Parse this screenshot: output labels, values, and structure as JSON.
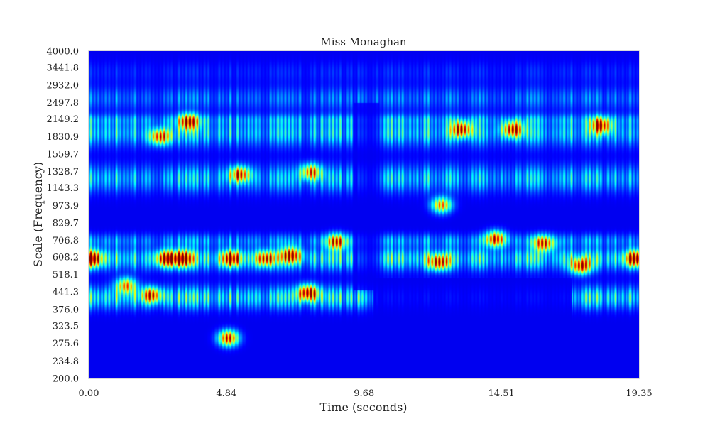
{
  "chart_data": {
    "type": "heatmap",
    "title": "Miss Monaghan",
    "xlabel": "Time (seconds)",
    "ylabel": "Scale (Frequency)",
    "xlim": [
      0.0,
      19.35
    ],
    "ylim": [
      200.0,
      4000.0
    ],
    "yscale": "log",
    "colormap": "jet",
    "grid": false,
    "x_ticks": [
      "0.00",
      "4.84",
      "9.68",
      "14.51",
      "19.35"
    ],
    "x_tick_values": [
      0.0,
      4.84,
      9.68,
      14.51,
      19.35
    ],
    "y_ticks": [
      "200.0",
      "234.8",
      "275.6",
      "323.5",
      "376.0",
      "441.3",
      "518.1",
      "608.2",
      "706.8",
      "829.7",
      "973.9",
      "1143.3",
      "1328.7",
      "1559.7",
      "1830.9",
      "2149.2",
      "2497.8",
      "2932.0",
      "3441.8",
      "4000.0"
    ],
    "y_tick_values": [
      200.0,
      234.8,
      275.6,
      323.5,
      376.0,
      441.3,
      518.1,
      608.2,
      706.8,
      829.7,
      973.9,
      1143.3,
      1328.7,
      1559.7,
      1830.9,
      2149.2,
      2497.8,
      2932.0,
      3441.8,
      4000.0
    ],
    "hotspots": [
      {
        "t": 0.1,
        "f": 600,
        "v": 1.0
      },
      {
        "t": 1.3,
        "f": 470,
        "v": 0.75
      },
      {
        "t": 2.2,
        "f": 430,
        "v": 0.8
      },
      {
        "t": 2.7,
        "f": 600,
        "v": 0.95
      },
      {
        "t": 3.3,
        "f": 600,
        "v": 0.95
      },
      {
        "t": 2.5,
        "f": 1830,
        "v": 0.8
      },
      {
        "t": 3.5,
        "f": 2100,
        "v": 0.85
      },
      {
        "t": 4.9,
        "f": 290,
        "v": 1.0
      },
      {
        "t": 5.0,
        "f": 600,
        "v": 0.95
      },
      {
        "t": 5.3,
        "f": 1300,
        "v": 0.8
      },
      {
        "t": 6.2,
        "f": 600,
        "v": 0.8
      },
      {
        "t": 7.1,
        "f": 620,
        "v": 0.85
      },
      {
        "t": 7.7,
        "f": 440,
        "v": 1.0
      },
      {
        "t": 7.8,
        "f": 1330,
        "v": 0.75
      },
      {
        "t": 8.7,
        "f": 700,
        "v": 0.8
      },
      {
        "t": 12.4,
        "f": 980,
        "v": 0.8
      },
      {
        "t": 12.3,
        "f": 580,
        "v": 0.85
      },
      {
        "t": 13.1,
        "f": 1960,
        "v": 0.9
      },
      {
        "t": 14.3,
        "f": 720,
        "v": 0.9
      },
      {
        "t": 14.9,
        "f": 1960,
        "v": 0.9
      },
      {
        "t": 16.0,
        "f": 690,
        "v": 0.85
      },
      {
        "t": 17.3,
        "f": 560,
        "v": 0.9
      },
      {
        "t": 18.0,
        "f": 2030,
        "v": 0.9
      },
      {
        "t": 19.2,
        "f": 600,
        "v": 1.0
      }
    ]
  }
}
